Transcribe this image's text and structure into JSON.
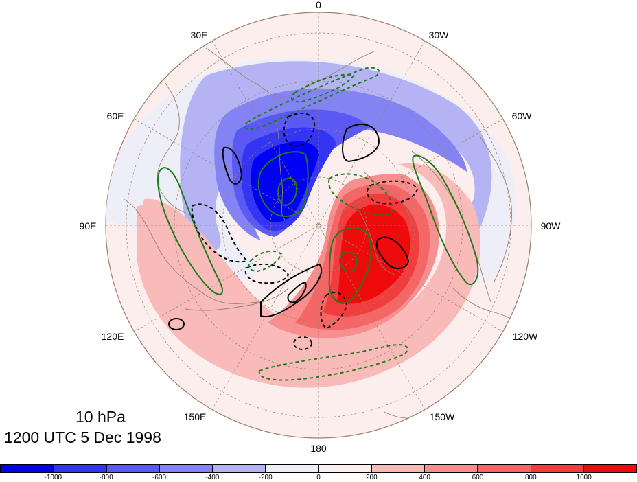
{
  "title": {
    "level": "10 hPa",
    "time": "1200 UTC 5 Dec 1998"
  },
  "longitude_labels": [
    {
      "text": "0",
      "angle": 0
    },
    {
      "text": "30W",
      "angle": 30
    },
    {
      "text": "60W",
      "angle": 60
    },
    {
      "text": "90W",
      "angle": 90
    },
    {
      "text": "120W",
      "angle": 120
    },
    {
      "text": "150W",
      "angle": 150
    },
    {
      "text": "180",
      "angle": 180
    },
    {
      "text": "150E",
      "angle": 210
    },
    {
      "text": "120E",
      "angle": 240
    },
    {
      "text": "90E",
      "angle": 270
    },
    {
      "text": "60E",
      "angle": 300
    },
    {
      "text": "30E",
      "angle": 330
    }
  ],
  "colorbar": {
    "colors": [
      "#0000f5",
      "#3434f5",
      "#5a5af3",
      "#8383f3",
      "#b4b4f5",
      "#eeeef8",
      "#fdeeee",
      "#f9baba",
      "#f78f8f",
      "#f36767",
      "#f13d3d",
      "#ef0b0b"
    ],
    "tick_labels": [
      "-1000",
      "-800",
      "-600",
      "-400",
      "-200",
      "0",
      "200",
      "400",
      "600",
      "800",
      "1000"
    ]
  },
  "map": {
    "projection": "north polar stereographic",
    "field": "10 hPa geopotential height anomaly",
    "colors": {
      "ocean": "#fdeeee",
      "land": "#f7e8e8",
      "coast": "#9a8066",
      "grid": "#a08070",
      "neg_contour": "#000000",
      "pos_contour": "#1e7a1e"
    }
  }
}
